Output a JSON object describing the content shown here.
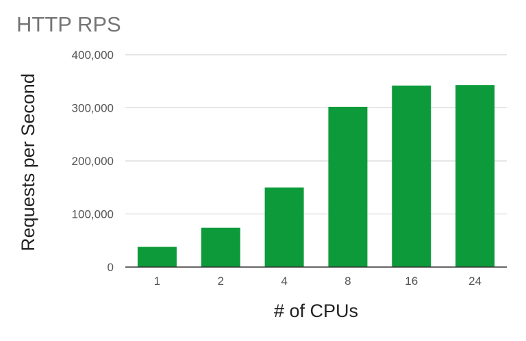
{
  "chart_data": {
    "type": "bar",
    "title": "HTTP RPS",
    "xlabel": "# of CPUs",
    "ylabel": "Requests per Second",
    "categories": [
      "1",
      "2",
      "4",
      "8",
      "16",
      "24"
    ],
    "values": [
      38000,
      74000,
      150000,
      302000,
      342000,
      343000
    ],
    "ylim": [
      0,
      400000
    ],
    "yticks": [
      0,
      100000,
      200000,
      300000,
      400000
    ],
    "ytick_labels": [
      "0",
      "100,000",
      "200,000",
      "300,000",
      "400,000"
    ],
    "grid": true,
    "legend": "none",
    "colors": {
      "bar": "#0d9a3a",
      "grid": "#cccccc",
      "axis": "#333333"
    }
  }
}
